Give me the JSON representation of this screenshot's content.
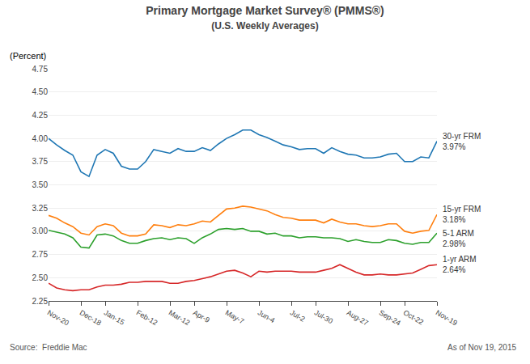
{
  "chart_data": {
    "type": "line",
    "title": "Primary Mortgage Market Survey® (PMMS®)",
    "subtitle": "(U.S. Weekly Averages)",
    "ylabel": "(Percent)",
    "annotations": [
      "Source:  Freddie Mac",
      "As of Nov 19, 2015"
    ],
    "categories": [
      "Nov-20",
      null,
      null,
      null,
      "Dec-18",
      null,
      null,
      "Jan-15",
      null,
      null,
      null,
      "Feb-12",
      null,
      null,
      null,
      "Mar-12",
      null,
      null,
      "Apr-9",
      null,
      null,
      null,
      "May-7",
      null,
      null,
      null,
      "Jun-4",
      null,
      null,
      null,
      "Jul-2",
      null,
      null,
      "Jul-30",
      null,
      null,
      null,
      "Aug-27",
      null,
      null,
      null,
      "Sep-24",
      null,
      null,
      "Oct-22",
      null,
      null,
      null,
      "Nov-19"
    ],
    "ylim": [
      2.25,
      4.75
    ],
    "yticks": [
      2.25,
      {
        "value": 2.5,
        "label": "2.50"
      },
      2.75,
      {
        "value": 3.0,
        "label": "3.00"
      },
      3.25,
      {
        "value": 3.5,
        "label": "3.50"
      },
      3.75,
      {
        "value": 4.0,
        "label": "4.00"
      },
      4.25,
      {
        "value": 4.5,
        "label": "4.50"
      },
      4.75
    ],
    "grid": true,
    "series": [
      {
        "name": "30-yr FRM",
        "values": [
          4.0,
          3.93,
          3.87,
          3.82,
          3.64,
          3.59,
          3.82,
          3.88,
          3.84,
          3.7,
          3.67,
          3.67,
          3.75,
          3.88,
          3.86,
          3.84,
          3.89,
          3.86,
          3.86,
          3.9,
          3.87,
          3.94,
          4.0,
          4.04,
          4.09,
          4.09,
          4.04,
          4.01,
          3.97,
          3.93,
          3.91,
          3.88,
          3.89,
          3.89,
          3.84,
          3.9,
          3.86,
          3.83,
          3.82,
          3.79,
          3.79,
          3.8,
          3.83,
          3.84,
          3.75,
          3.75,
          3.8,
          3.79,
          3.97
        ],
        "value_labels": [
          null,
          null,
          null,
          null,
          null,
          null,
          null,
          null,
          null,
          null,
          null,
          null,
          null,
          null,
          null,
          null,
          null,
          null,
          null,
          null,
          null,
          null,
          null,
          null,
          null,
          null,
          null,
          null,
          null,
          null,
          null,
          null,
          null,
          null,
          null,
          null,
          null,
          null,
          null,
          null,
          null,
          null,
          null,
          null,
          null,
          null,
          null,
          null,
          "3.97%"
        ]
      },
      {
        "name": "15-yr FRM",
        "values": [
          3.17,
          3.14,
          3.09,
          3.05,
          2.98,
          2.96,
          3.05,
          3.08,
          3.06,
          2.98,
          2.95,
          2.95,
          2.97,
          3.07,
          3.06,
          3.04,
          3.07,
          3.06,
          3.08,
          3.11,
          3.1,
          3.17,
          3.24,
          3.25,
          3.27,
          3.26,
          3.24,
          3.22,
          3.18,
          3.15,
          3.14,
          3.12,
          3.12,
          3.12,
          3.09,
          3.13,
          3.1,
          3.08,
          3.08,
          3.06,
          3.05,
          3.06,
          3.08,
          3.08,
          3.0,
          2.98,
          3.0,
          3.01,
          3.18
        ],
        "value_labels": [
          null,
          null,
          null,
          null,
          null,
          null,
          null,
          null,
          null,
          null,
          null,
          null,
          null,
          null,
          null,
          null,
          null,
          null,
          null,
          null,
          null,
          null,
          null,
          null,
          null,
          null,
          null,
          null,
          null,
          null,
          null,
          null,
          null,
          null,
          null,
          null,
          null,
          null,
          null,
          null,
          null,
          null,
          null,
          null,
          null,
          null,
          null,
          null,
          "3.18%"
        ]
      },
      {
        "name": "5-1 ARM",
        "values": [
          3.01,
          2.99,
          2.97,
          2.93,
          2.83,
          2.82,
          2.96,
          2.97,
          2.95,
          2.9,
          2.87,
          2.87,
          2.9,
          2.92,
          2.93,
          2.91,
          2.93,
          2.92,
          2.87,
          2.93,
          2.97,
          3.02,
          3.03,
          3.02,
          3.03,
          3.0,
          3.0,
          2.97,
          2.98,
          2.95,
          2.95,
          2.93,
          2.94,
          2.94,
          2.93,
          2.93,
          2.92,
          2.89,
          2.91,
          2.89,
          2.88,
          2.88,
          2.91,
          2.9,
          2.87,
          2.86,
          2.88,
          2.88,
          2.98
        ],
        "value_labels": [
          null,
          null,
          null,
          null,
          null,
          null,
          null,
          null,
          null,
          null,
          null,
          null,
          null,
          null,
          null,
          null,
          null,
          null,
          null,
          null,
          null,
          null,
          null,
          null,
          null,
          null,
          null,
          null,
          null,
          null,
          null,
          null,
          null,
          null,
          null,
          null,
          null,
          null,
          null,
          null,
          null,
          null,
          null,
          null,
          null,
          null,
          null,
          null,
          "2.98%"
        ]
      },
      {
        "name": "1-yr ARM",
        "values": [
          2.44,
          2.39,
          2.37,
          2.36,
          2.37,
          2.37,
          2.4,
          2.42,
          2.42,
          2.43,
          2.45,
          2.45,
          2.46,
          2.46,
          2.46,
          2.44,
          2.44,
          2.46,
          2.47,
          2.49,
          2.51,
          2.54,
          2.57,
          2.58,
          2.55,
          2.51,
          2.57,
          2.56,
          2.57,
          2.57,
          2.57,
          2.56,
          2.56,
          2.56,
          2.58,
          2.6,
          2.64,
          2.6,
          2.56,
          2.53,
          2.53,
          2.54,
          2.53,
          2.53,
          2.54,
          2.55,
          2.59,
          2.63,
          2.64
        ],
        "value_labels": [
          null,
          null,
          null,
          null,
          null,
          null,
          null,
          null,
          null,
          null,
          null,
          null,
          null,
          null,
          null,
          null,
          null,
          null,
          null,
          null,
          null,
          null,
          null,
          null,
          null,
          null,
          null,
          null,
          null,
          null,
          null,
          null,
          null,
          null,
          null,
          null,
          null,
          null,
          null,
          null,
          null,
          null,
          null,
          null,
          null,
          null,
          null,
          null,
          "2.64%"
        ]
      }
    ]
  }
}
